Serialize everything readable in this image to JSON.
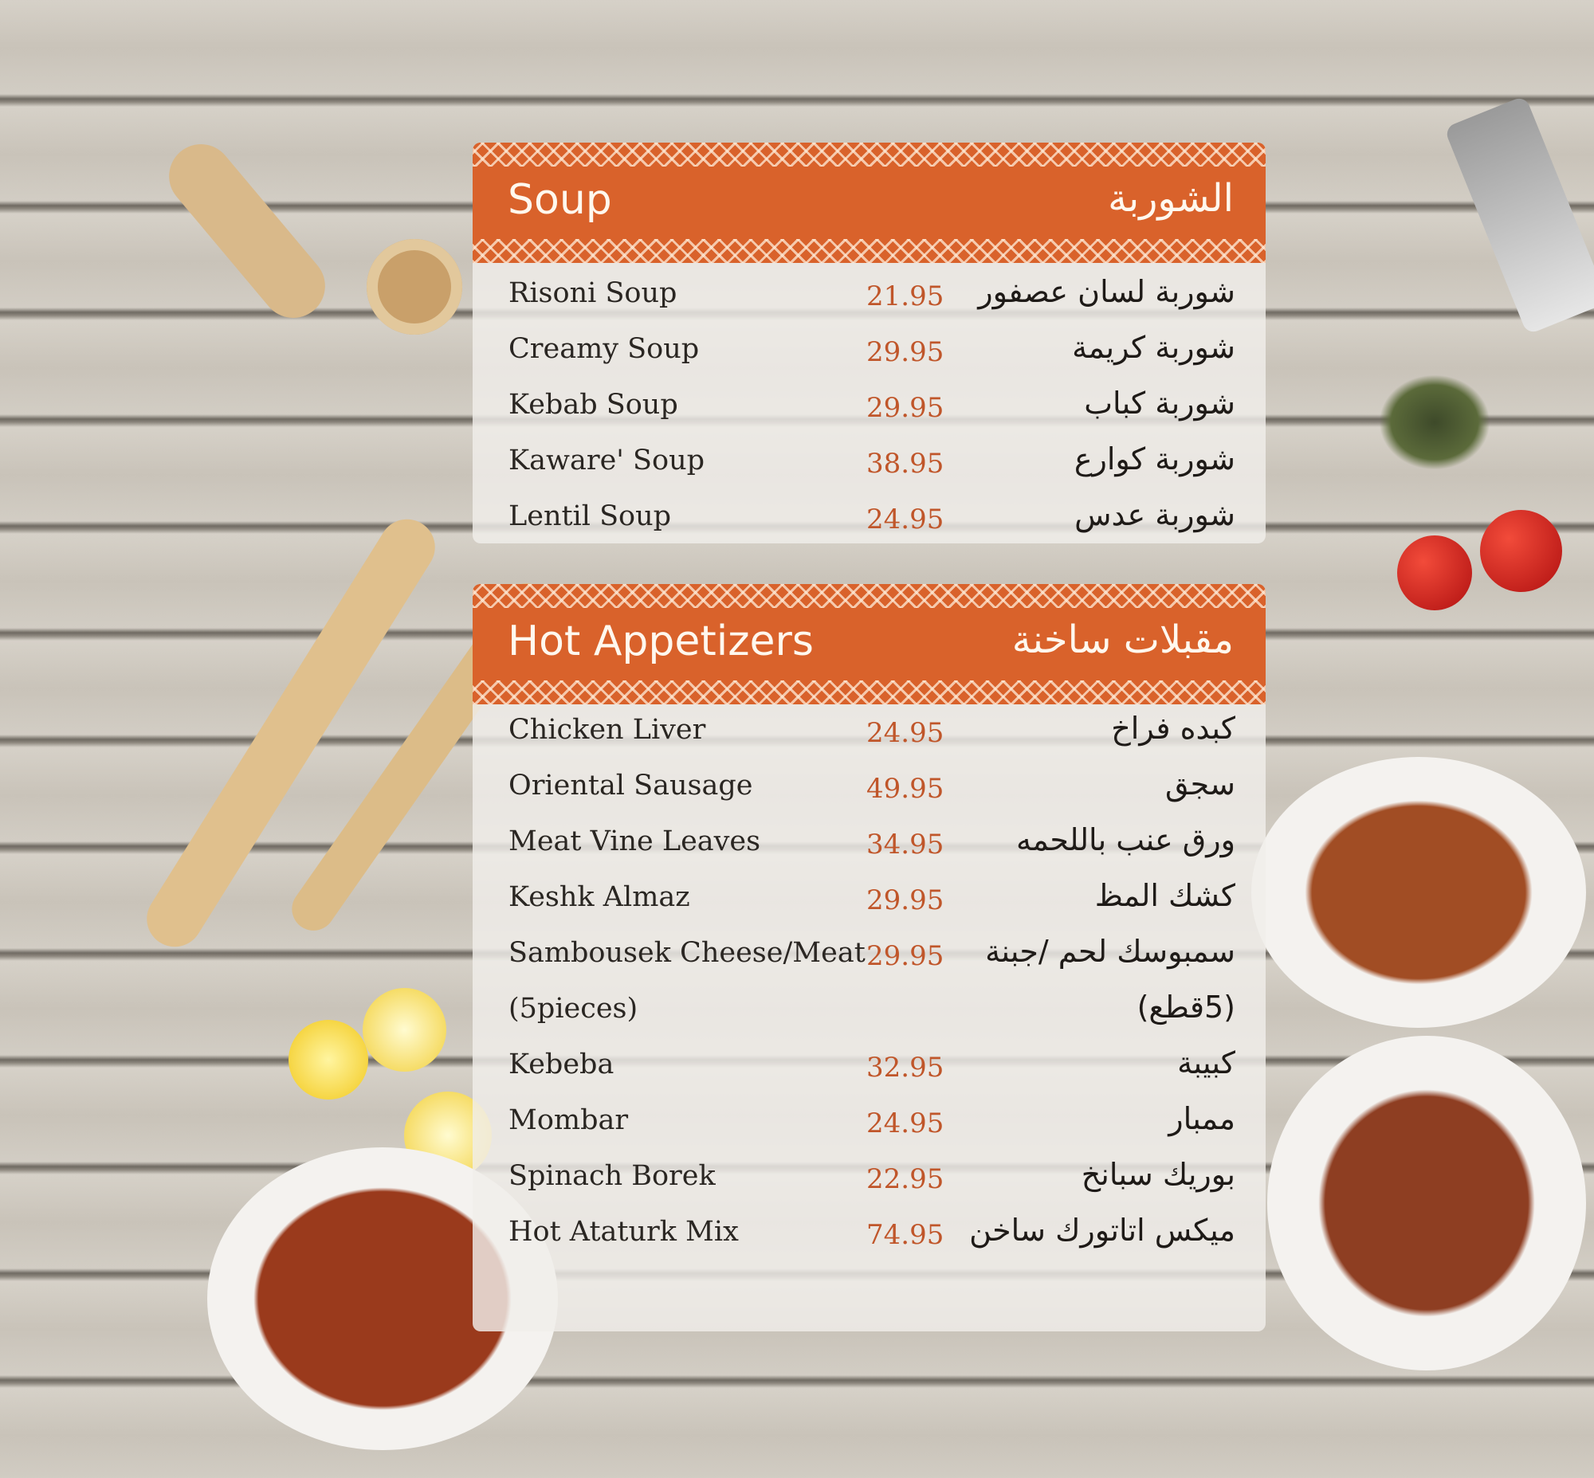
{
  "colors": {
    "header": "#d9622b",
    "price": "#c0562a"
  },
  "sections": [
    {
      "title_en": "Soup",
      "title_ar": "الشوربة",
      "items": [
        {
          "name": "Risoni Soup",
          "price": "21.95",
          "name_ar": "شوربة لسان عصفور"
        },
        {
          "name": "Creamy Soup",
          "price": "29.95",
          "name_ar": "شوربة كريمة"
        },
        {
          "name": "Kebab Soup",
          "price": "29.95",
          "name_ar": "شوربة كباب"
        },
        {
          "name": "Kaware' Soup",
          "price": "38.95",
          "name_ar": "شوربة كوارع"
        },
        {
          "name": "Lentil Soup",
          "price": "24.95",
          "name_ar": "شوربة عدس"
        }
      ]
    },
    {
      "title_en": "Hot Appetizers",
      "title_ar": "مقبلات ساخنة",
      "items": [
        {
          "name": "Chicken Liver",
          "price": "24.95",
          "name_ar": "كبده فراخ"
        },
        {
          "name": "Oriental Sausage",
          "price": "49.95",
          "name_ar": "سجق"
        },
        {
          "name": "Meat Vine Leaves",
          "price": "34.95",
          "name_ar": "ورق عنب باللحمه"
        },
        {
          "name": "Keshk Almaz",
          "price": "29.95",
          "name_ar": "كشك المظ"
        },
        {
          "name": "Sambousek Cheese/Meat",
          "price": "29.95",
          "name_ar": "سمبوسك لحم /جبنة"
        },
        {
          "name": "(5pieces)",
          "price": "",
          "name_ar": "(5قطع)"
        },
        {
          "name": "Kebeba",
          "price": "32.95",
          "name_ar": "كبيبة"
        },
        {
          "name": "Mombar",
          "price": "24.95",
          "name_ar": "ممبار"
        },
        {
          "name": "Spinach Borek",
          "price": "22.95",
          "name_ar": "بوريك سبانخ"
        },
        {
          "name": "Hot Ataturk Mix",
          "price": "74.95",
          "name_ar": "ميكس اتاتورك ساخن"
        }
      ]
    }
  ]
}
